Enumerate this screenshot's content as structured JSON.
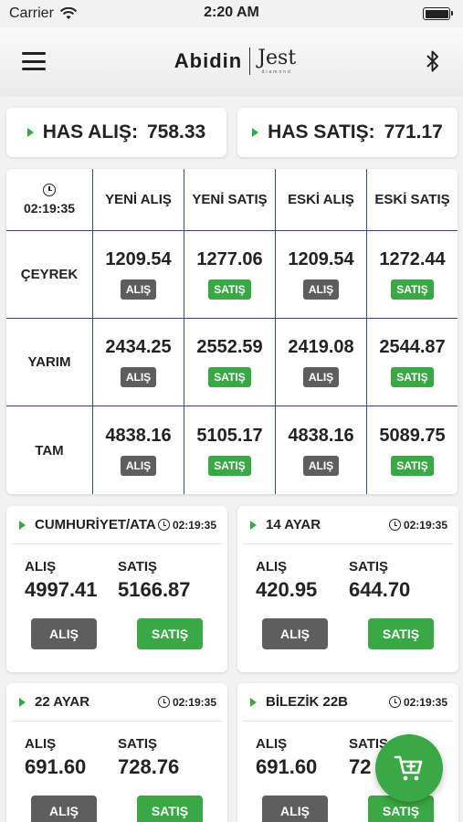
{
  "status_bar": {
    "carrier": "Carrier",
    "time": "2:20 AM"
  },
  "header": {
    "logo_main": "Abidin",
    "logo_sub": "Jest",
    "logo_sub_small": "diamond"
  },
  "has": {
    "buy_label": "HAS ALIŞ:",
    "buy_value": "758.33",
    "sell_label": "HAS SATIŞ:",
    "sell_value": "771.17"
  },
  "table": {
    "time": "02:19:35",
    "columns": [
      "YENİ ALIŞ",
      "YENİ SATIŞ",
      "ESKİ ALIŞ",
      "ESKİ SATIŞ"
    ],
    "rows": [
      {
        "label": "ÇEYREK",
        "values": [
          "1209.54",
          "1277.06",
          "1209.54",
          "1272.44"
        ]
      },
      {
        "label": "YARIM",
        "values": [
          "2434.25",
          "2552.59",
          "2419.08",
          "2544.87"
        ]
      },
      {
        "label": "TAM",
        "values": [
          "4838.16",
          "5105.17",
          "4838.16",
          "5089.75"
        ]
      }
    ],
    "buy_badge": "ALIŞ",
    "sell_badge": "SATIŞ"
  },
  "cards": [
    {
      "name": "CUMHURİYET/ATA",
      "time": "02:19:35",
      "buy_label": "ALIŞ",
      "buy": "4997.41",
      "sell_label": "SATIŞ",
      "sell": "5166.87",
      "buy_btn": "ALIŞ",
      "sell_btn": "SATIŞ"
    },
    {
      "name": "14 AYAR",
      "time": "02:19:35",
      "buy_label": "ALIŞ",
      "buy": "420.95",
      "sell_label": "SATIŞ",
      "sell": "644.70",
      "buy_btn": "ALIŞ",
      "sell_btn": "SATIŞ"
    },
    {
      "name": "22 AYAR",
      "time": "02:19:35",
      "buy_label": "ALIŞ",
      "buy": "691.60",
      "sell_label": "SATIŞ",
      "sell": "728.76",
      "buy_btn": "ALIŞ",
      "sell_btn": "SATIŞ"
    },
    {
      "name": "BİLEZİK 22B",
      "time": "02:19:35",
      "buy_label": "ALIŞ",
      "buy": "691.60",
      "sell_label": "SATIŞ",
      "sell": "72",
      "buy_btn": "ALIŞ",
      "sell_btn": "SATIŞ"
    }
  ],
  "colors": {
    "accent": "#3aa845",
    "gray_button": "#5e5e5e",
    "grid_line": "#2f4f7a"
  },
  "icons": {
    "menu": "hamburger-icon",
    "bluetooth": "bluetooth-icon",
    "cart": "add-cart-icon",
    "clock": "clock-icon"
  }
}
